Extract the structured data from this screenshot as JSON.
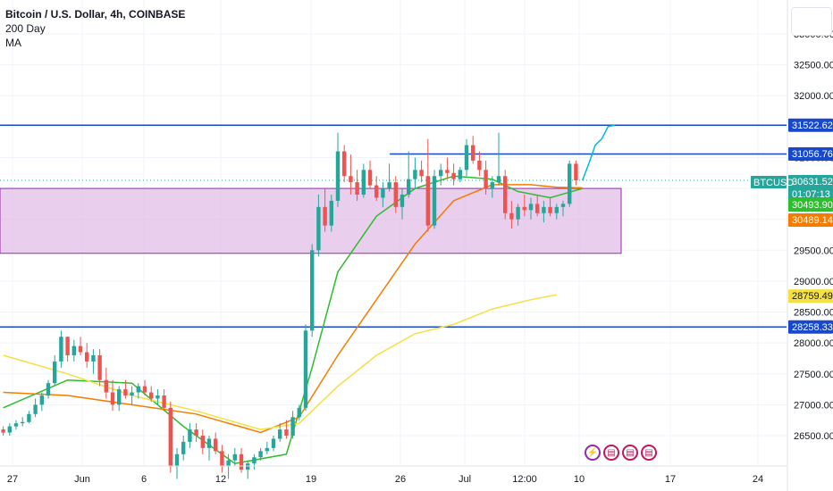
{
  "header": {
    "title": "Bitcoin / U.S. Dollar, 4h, COINBASE",
    "indicator_line1": "200 Day",
    "indicator_line2": "MA"
  },
  "colors": {
    "candle_up": "#26a69a",
    "candle_down": "#ef5350",
    "hline": "#1848cc",
    "zone_fill": "#e1bee7",
    "zone_border": "#9c27b0",
    "ma_green": "#2ebd2e",
    "ma_orange": "#f57c00",
    "ma_yellow": "#f5e042",
    "projection": "#00bcd4"
  },
  "icons": [
    "lightning-icon",
    "us-flag-icon",
    "us-flag-icon",
    "us-flag-icon"
  ],
  "chart_data": {
    "type": "candlestick",
    "title": "Bitcoin / U.S. Dollar, 4h, COINBASE",
    "symbol": "BTCUSD",
    "ylim": [
      26000,
      33500
    ],
    "y_ticks": [
      26500,
      27000,
      27500,
      28000,
      28500,
      29000,
      29500,
      30000,
      30500,
      31000,
      31500,
      32000,
      32500,
      33000
    ],
    "y_tick_labels": [
      "26500.00",
      "27000.00",
      "27500.00",
      "28000.00",
      "28500.00",
      "29000.00",
      "29500.00",
      "30000.00",
      "30500.00",
      "31000.00",
      "31500.00",
      "32000.00",
      "32500.00",
      "33000.00"
    ],
    "x_tick_labels": [
      "27",
      "Jun",
      "6",
      "12",
      "19",
      "26",
      "Jul",
      "12:00",
      "10",
      "17",
      "24"
    ],
    "x_tick_index": [
      0,
      45,
      90,
      135,
      180,
      225,
      270,
      315,
      360,
      405,
      450
    ],
    "grid": true,
    "horizontal_lines": [
      31522.62,
      31056.76,
      28258.33
    ],
    "zone": {
      "low": 29450,
      "high": 30500,
      "start_index": 0,
      "end_index": 383
    },
    "candles": [
      [
        26600,
        26650,
        26500,
        26550
      ],
      [
        26550,
        26700,
        26500,
        26650
      ],
      [
        26650,
        26750,
        26600,
        26700
      ],
      [
        26700,
        26800,
        26650,
        26720
      ],
      [
        26720,
        26900,
        26700,
        26850
      ],
      [
        26850,
        27100,
        26800,
        27000
      ],
      [
        27000,
        27200,
        26900,
        27150
      ],
      [
        27150,
        27400,
        27100,
        27350
      ],
      [
        27350,
        27800,
        27300,
        27700
      ],
      [
        27700,
        28200,
        27600,
        28100
      ],
      [
        28100,
        28100,
        27700,
        27800
      ],
      [
        27800,
        28050,
        27700,
        27950
      ],
      [
        27950,
        28100,
        27800,
        27850
      ],
      [
        27850,
        28000,
        27600,
        27700
      ],
      [
        27700,
        27900,
        27500,
        27800
      ],
      [
        27800,
        27900,
        27300,
        27400
      ],
      [
        27400,
        27600,
        27100,
        27200
      ],
      [
        27200,
        27400,
        26900,
        27000
      ],
      [
        27000,
        27300,
        26900,
        27250
      ],
      [
        27250,
        27400,
        27100,
        27150
      ],
      [
        27150,
        27300,
        27000,
        27200
      ],
      [
        27200,
        27350,
        27100,
        27300
      ],
      [
        27300,
        27400,
        27150,
        27200
      ],
      [
        27200,
        27300,
        27050,
        27100
      ],
      [
        27100,
        27250,
        27000,
        27150
      ],
      [
        27150,
        27250,
        26900,
        26950
      ],
      [
        26950,
        27050,
        25900,
        26000
      ],
      [
        26000,
        26300,
        25800,
        26200
      ],
      [
        26200,
        26500,
        26100,
        26400
      ],
      [
        26400,
        26700,
        26300,
        26600
      ],
      [
        26600,
        26700,
        26400,
        26500
      ],
      [
        26500,
        26600,
        26200,
        26300
      ],
      [
        26300,
        26500,
        26100,
        26450
      ],
      [
        26450,
        26550,
        26200,
        26250
      ],
      [
        26250,
        26350,
        25900,
        26000
      ],
      [
        26000,
        26200,
        25800,
        26100
      ],
      [
        26100,
        26300,
        26000,
        26200
      ],
      [
        26200,
        26300,
        25900,
        25950
      ],
      [
        25950,
        26100,
        25800,
        26050
      ],
      [
        26050,
        26200,
        25950,
        26150
      ],
      [
        26150,
        26300,
        26100,
        26250
      ],
      [
        26250,
        26400,
        26200,
        26300
      ],
      [
        26300,
        26500,
        26250,
        26450
      ],
      [
        26450,
        26700,
        26400,
        26600
      ],
      [
        26600,
        26750,
        26450,
        26500
      ],
      [
        26500,
        26900,
        26450,
        26800
      ],
      [
        26800,
        27000,
        26750,
        26950
      ],
      [
        26950,
        28300,
        26900,
        28200
      ],
      [
        28200,
        29600,
        28100,
        29500
      ],
      [
        29500,
        30400,
        29400,
        30200
      ],
      [
        30200,
        30500,
        29800,
        29900
      ],
      [
        29900,
        30400,
        29800,
        30300
      ],
      [
        30300,
        31400,
        30200,
        31100
      ],
      [
        31100,
        31200,
        30600,
        30700
      ],
      [
        30700,
        31050,
        30400,
        30600
      ],
      [
        30600,
        30800,
        30300,
        30400
      ],
      [
        30400,
        30900,
        30350,
        30800
      ],
      [
        30800,
        30950,
        30500,
        30550
      ],
      [
        30550,
        30700,
        30300,
        30350
      ],
      [
        30350,
        30600,
        30200,
        30500
      ],
      [
        30500,
        30900,
        30450,
        30600
      ],
      [
        30600,
        30700,
        30100,
        30200
      ],
      [
        30200,
        30500,
        30000,
        30400
      ],
      [
        30400,
        31100,
        30350,
        30650
      ],
      [
        30650,
        31000,
        30500,
        30800
      ],
      [
        30800,
        30950,
        30600,
        30700
      ],
      [
        30700,
        31300,
        29800,
        29900
      ],
      [
        29900,
        30800,
        29850,
        30700
      ],
      [
        30700,
        30900,
        30550,
        30800
      ],
      [
        30800,
        31000,
        30650,
        30750
      ],
      [
        30750,
        30900,
        30550,
        30650
      ],
      [
        30650,
        30850,
        30600,
        30800
      ],
      [
        30800,
        31300,
        30700,
        31200
      ],
      [
        31200,
        31350,
        30900,
        30950
      ],
      [
        30950,
        31100,
        30700,
        30800
      ],
      [
        30800,
        30950,
        30400,
        30500
      ],
      [
        30500,
        30700,
        30350,
        30600
      ],
      [
        30600,
        31400,
        30550,
        30700
      ],
      [
        30700,
        30800,
        30000,
        30100
      ],
      [
        30100,
        30300,
        29850,
        30000
      ],
      [
        30000,
        30250,
        29900,
        30200
      ],
      [
        30200,
        30400,
        30050,
        30150
      ],
      [
        30150,
        30350,
        30000,
        30250
      ],
      [
        30250,
        30400,
        30050,
        30100
      ],
      [
        30100,
        30300,
        29950,
        30200
      ],
      [
        30200,
        30350,
        30050,
        30100
      ],
      [
        30100,
        30250,
        30000,
        30200
      ],
      [
        30200,
        30300,
        30050,
        30250
      ],
      [
        30250,
        30950,
        30200,
        30900
      ],
      [
        30900,
        30950,
        30550,
        30630
      ]
    ],
    "moving_averages": [
      {
        "color": "#2ebd2e",
        "values": [
          [
            0,
            26950
          ],
          [
            10,
            27400
          ],
          [
            20,
            27350
          ],
          [
            28,
            26650
          ],
          [
            36,
            26050
          ],
          [
            44,
            26200
          ],
          [
            48,
            27600
          ],
          [
            52,
            29150
          ],
          [
            58,
            30050
          ],
          [
            64,
            30500
          ],
          [
            70,
            30700
          ],
          [
            76,
            30650
          ],
          [
            80,
            30450
          ],
          [
            85,
            30350
          ],
          [
            90,
            30500
          ]
        ]
      },
      {
        "color": "#f57c00",
        "values": [
          [
            0,
            27200
          ],
          [
            10,
            27150
          ],
          [
            20,
            27000
          ],
          [
            30,
            26850
          ],
          [
            40,
            26550
          ],
          [
            46,
            26800
          ],
          [
            52,
            27800
          ],
          [
            58,
            28700
          ],
          [
            64,
            29600
          ],
          [
            70,
            30300
          ],
          [
            76,
            30560
          ],
          [
            82,
            30560
          ],
          [
            86,
            30520
          ],
          [
            90,
            30510
          ]
        ]
      },
      {
        "color": "#f5e042",
        "values": [
          [
            0,
            27800
          ],
          [
            10,
            27500
          ],
          [
            20,
            27150
          ],
          [
            30,
            26900
          ],
          [
            40,
            26600
          ],
          [
            46,
            26700
          ],
          [
            52,
            27300
          ],
          [
            58,
            27800
          ],
          [
            64,
            28150
          ],
          [
            70,
            28300
          ],
          [
            76,
            28550
          ],
          [
            82,
            28700
          ],
          [
            86,
            28780
          ]
        ]
      }
    ],
    "projection": [
      [
        90,
        30630
      ],
      [
        91,
        30900
      ],
      [
        92,
        31200
      ],
      [
        93,
        31300
      ],
      [
        94,
        31500
      ],
      [
        95,
        31522
      ]
    ],
    "price_labels": [
      {
        "value": 31522.62,
        "label": "31522.62",
        "bg": "#1848cc",
        "fg": "#ffffff"
      },
      {
        "value": 31056.76,
        "label": "31056.76",
        "bg": "#1848cc",
        "fg": "#ffffff"
      },
      {
        "value": 30631.52,
        "label": "30631.52",
        "bg": "#26a69a",
        "fg": "#ffffff",
        "sub": "01:07:13",
        "symbol_tag": "BTCUSD"
      },
      {
        "value": 30493.9,
        "label": "30493.90",
        "bg": "#2ebd2e",
        "fg": "#ffffff"
      },
      {
        "value": 30489.14,
        "label": "30489.14",
        "bg": "#f57c00",
        "fg": "#ffffff"
      },
      {
        "value": 28759.49,
        "label": "28759.49",
        "bg": "#f5e042",
        "fg": "#131722"
      },
      {
        "value": 28258.33,
        "label": "28258.33",
        "bg": "#1848cc",
        "fg": "#ffffff"
      }
    ]
  }
}
